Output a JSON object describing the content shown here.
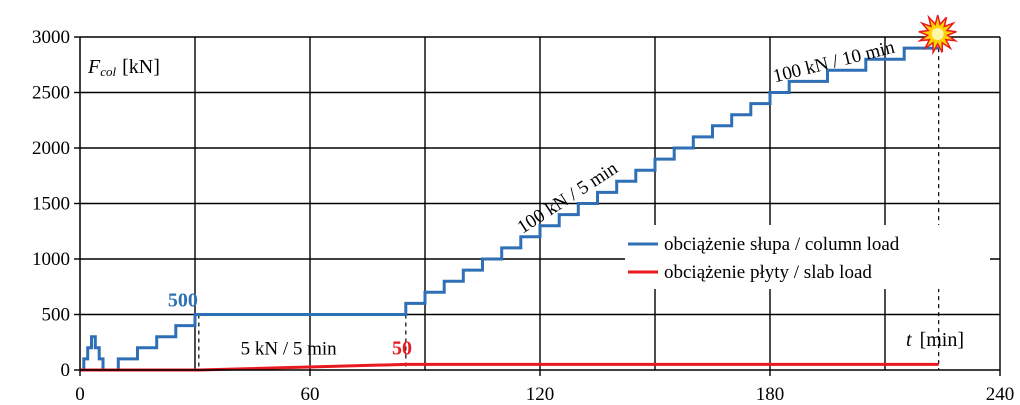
{
  "chart_data": {
    "type": "line",
    "xlim": [
      0,
      240
    ],
    "ylim": [
      0,
      3000
    ],
    "x_ticks": [
      0,
      60,
      120,
      180,
      240
    ],
    "y_ticks": [
      0,
      500,
      1000,
      1500,
      2000,
      2500,
      3000
    ],
    "grid": true,
    "legend_position": "right",
    "y_label_var": "F",
    "y_label_sub": "col",
    "y_label_unit": "[kN]",
    "x_label_var": "t",
    "x_label_unit": "[min]",
    "series": [
      {
        "name": "obciążenie słupa / column load",
        "color": "#2e6fb5",
        "points": [
          [
            0,
            0
          ],
          [
            1,
            0
          ],
          [
            1,
            100
          ],
          [
            2,
            100
          ],
          [
            2,
            200
          ],
          [
            3,
            200
          ],
          [
            3,
            300
          ],
          [
            4,
            300
          ],
          [
            4,
            200
          ],
          [
            5,
            200
          ],
          [
            5,
            100
          ],
          [
            6,
            100
          ],
          [
            6,
            0
          ],
          [
            10,
            0
          ],
          [
            10,
            100
          ],
          [
            15,
            100
          ],
          [
            15,
            200
          ],
          [
            20,
            200
          ],
          [
            20,
            300
          ],
          [
            25,
            300
          ],
          [
            25,
            400
          ],
          [
            30,
            400
          ],
          [
            30,
            500
          ],
          [
            85,
            500
          ],
          [
            85,
            600
          ],
          [
            90,
            600
          ],
          [
            90,
            700
          ],
          [
            95,
            700
          ],
          [
            95,
            800
          ],
          [
            100,
            800
          ],
          [
            100,
            900
          ],
          [
            105,
            900
          ],
          [
            105,
            1000
          ],
          [
            110,
            1000
          ],
          [
            110,
            1100
          ],
          [
            115,
            1100
          ],
          [
            115,
            1200
          ],
          [
            120,
            1200
          ],
          [
            120,
            1300
          ],
          [
            125,
            1300
          ],
          [
            125,
            1400
          ],
          [
            130,
            1400
          ],
          [
            130,
            1500
          ],
          [
            135,
            1500
          ],
          [
            135,
            1600
          ],
          [
            140,
            1600
          ],
          [
            140,
            1700
          ],
          [
            145,
            1700
          ],
          [
            145,
            1800
          ],
          [
            150,
            1800
          ],
          [
            150,
            1900
          ],
          [
            155,
            1900
          ],
          [
            155,
            2000
          ],
          [
            160,
            2000
          ],
          [
            160,
            2100
          ],
          [
            165,
            2100
          ],
          [
            165,
            2200
          ],
          [
            170,
            2200
          ],
          [
            170,
            2300
          ],
          [
            175,
            2300
          ],
          [
            175,
            2400
          ],
          [
            180,
            2400
          ],
          [
            180,
            2500
          ],
          [
            185,
            2500
          ],
          [
            185,
            2600
          ],
          [
            195,
            2600
          ],
          [
            195,
            2700
          ],
          [
            205,
            2700
          ],
          [
            205,
            2800
          ],
          [
            215,
            2800
          ],
          [
            215,
            2900
          ],
          [
            224,
            2900
          ]
        ]
      },
      {
        "name": "obciążenie płyty / slab load",
        "color": "#e8191f",
        "points": [
          [
            0,
            0
          ],
          [
            31,
            0
          ],
          [
            85,
            50
          ],
          [
            224,
            50
          ]
        ]
      }
    ],
    "annotations": [
      {
        "text": "500",
        "x": 31,
        "y": 500,
        "color": "#2e6fb5"
      },
      {
        "text": "50",
        "x": 84,
        "y": 50,
        "color": "#e8191f"
      },
      {
        "text": "5 kN / 5 min",
        "x": 56,
        "y": 50
      },
      {
        "text": "100 kN / 5 min",
        "x": 128,
        "y": 1850
      },
      {
        "text": "100 kN / 10 min",
        "x": 197,
        "y": 2780
      }
    ],
    "markers": [
      {
        "name": "failure-burst",
        "x": 224,
        "y": 3000,
        "color": "#ffd200",
        "stroke": "#e8191f"
      }
    ],
    "vlines": [
      31,
      85,
      224
    ]
  }
}
